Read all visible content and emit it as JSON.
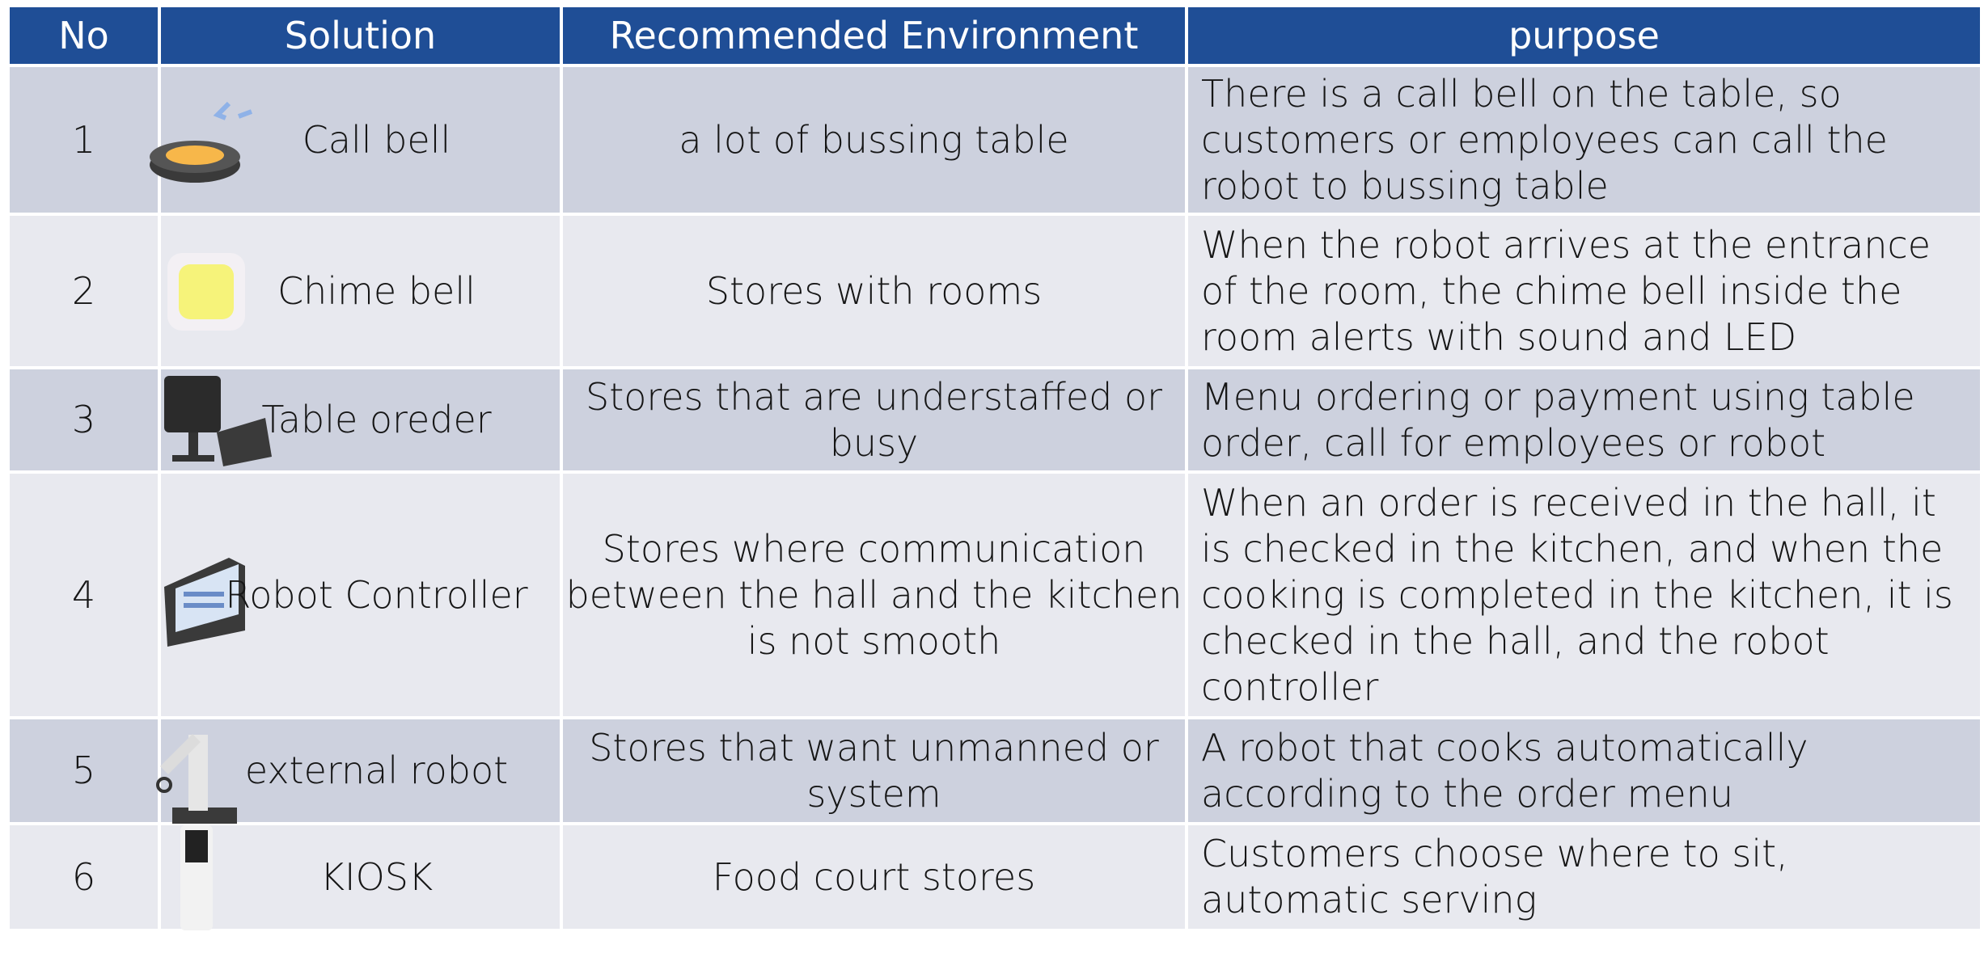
{
  "table": {
    "headers": [
      "No",
      "Solution",
      "Recommended Environment",
      "purpose"
    ],
    "rows": [
      [
        "1",
        "Call bell",
        "a lot of bussing table",
        "There is a call bell on the table, so customers or employees can call the robot to bussing table"
      ],
      [
        "2",
        "Chime bell",
        "Stores with rooms",
        "When the robot arrives at the entrance of the room, the chime bell inside the room alerts with sound and LED"
      ],
      [
        "3",
        "Table oreder",
        "Stores that are understaffed or busy",
        "Menu ordering or payment using table order, call for employees or robot"
      ],
      [
        "4",
        "Robot Controller",
        "Stores where communication between the hall and the kitchen is not smooth",
        "When an order is received in the hall, it is checked in the kitchen, and when the cooking is completed in the kitchen, it is checked in the hall, and the robot controller"
      ],
      [
        "5",
        "external robot",
        "Stores that want unmanned or system",
        "A robot that cooks automatically according to the order menu"
      ],
      [
        "6",
        "KIOSK",
        "Food court stores",
        "Customers choose where to sit, automatic serving"
      ]
    ]
  }
}
